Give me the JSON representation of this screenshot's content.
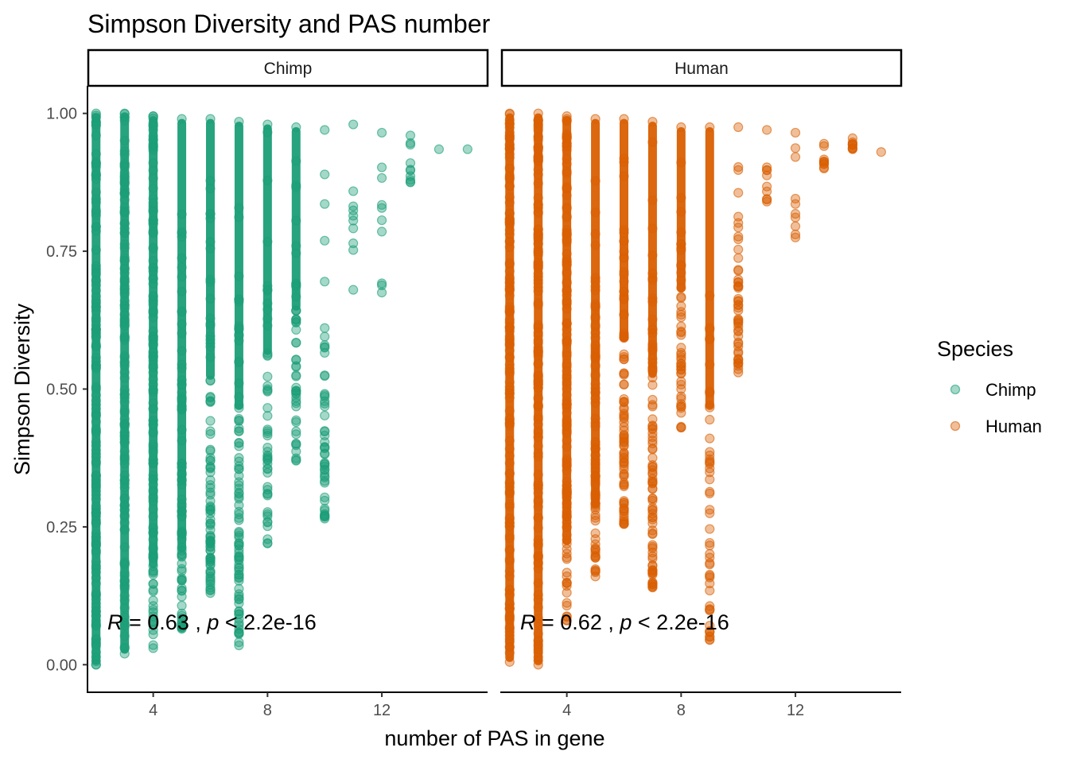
{
  "chart_data": {
    "type": "scatter",
    "title": "Simpson Diversity and PAS number",
    "xlabel": "number of PAS in gene",
    "ylabel": "Simpson Diversity",
    "xlim": [
      1.7,
      15.7
    ],
    "ylim": [
      -0.05,
      1.05
    ],
    "xticks": [
      "4",
      "8",
      "12"
    ],
    "yticks": [
      "0.00",
      "0.25",
      "0.50",
      "0.75",
      "1.00"
    ],
    "grid": false,
    "facets": [
      {
        "label": "Chimp",
        "annotation_r": "0.63",
        "annotation_p": "2.2e-16",
        "color": "#1b9e77",
        "columns": [
          {
            "x": 2,
            "ymin": 0.0,
            "ymax": 1.0
          },
          {
            "x": 3,
            "ymin": 0.02,
            "ymax": 1.0
          },
          {
            "x": 4,
            "ymin": 0.03,
            "ymax": 0.995
          },
          {
            "x": 5,
            "ymin": 0.065,
            "ymax": 0.99
          },
          {
            "x": 6,
            "ymin": 0.13,
            "ymax": 0.99
          },
          {
            "x": 7,
            "ymin": 0.035,
            "ymax": 0.985
          },
          {
            "x": 8,
            "ymin": 0.22,
            "ymax": 0.98
          },
          {
            "x": 9,
            "ymin": 0.37,
            "ymax": 0.975
          },
          {
            "x": 10,
            "ymin": 0.265,
            "ymax": 0.97
          },
          {
            "x": 11,
            "ymin": 0.68,
            "ymax": 0.98
          },
          {
            "x": 12,
            "ymin": 0.675,
            "ymax": 0.965
          },
          {
            "x": 13,
            "ymin": 0.875,
            "ymax": 0.96
          },
          {
            "x": 14,
            "ymin": 0.935,
            "ymax": 0.935
          },
          {
            "x": 15,
            "ymin": 0.935,
            "ymax": 0.935
          }
        ]
      },
      {
        "label": "Human",
        "annotation_r": "0.62",
        "annotation_p": "2.2e-16",
        "color": "#d95f02",
        "columns": [
          {
            "x": 2,
            "ymin": 0.005,
            "ymax": 1.0
          },
          {
            "x": 3,
            "ymin": 0.0,
            "ymax": 1.0
          },
          {
            "x": 4,
            "ymin": 0.08,
            "ymax": 0.995
          },
          {
            "x": 5,
            "ymin": 0.16,
            "ymax": 0.99
          },
          {
            "x": 6,
            "ymin": 0.255,
            "ymax": 0.99
          },
          {
            "x": 7,
            "ymin": 0.14,
            "ymax": 0.985
          },
          {
            "x": 8,
            "ymin": 0.43,
            "ymax": 0.975
          },
          {
            "x": 9,
            "ymin": 0.045,
            "ymax": 0.975
          },
          {
            "x": 10,
            "ymin": 0.53,
            "ymax": 0.975
          },
          {
            "x": 11,
            "ymin": 0.84,
            "ymax": 0.97
          },
          {
            "x": 12,
            "ymin": 0.775,
            "ymax": 0.965
          },
          {
            "x": 13,
            "ymin": 0.9,
            "ymax": 0.945
          },
          {
            "x": 14,
            "ymin": 0.935,
            "ymax": 0.955
          },
          {
            "x": 15,
            "ymin": 0.93,
            "ymax": 0.93
          }
        ]
      }
    ],
    "legend": {
      "title": "Species",
      "placement": "right",
      "items": [
        {
          "label": "Chimp",
          "color": "#1b9e77"
        },
        {
          "label": "Human",
          "color": "#d95f02"
        }
      ]
    }
  }
}
